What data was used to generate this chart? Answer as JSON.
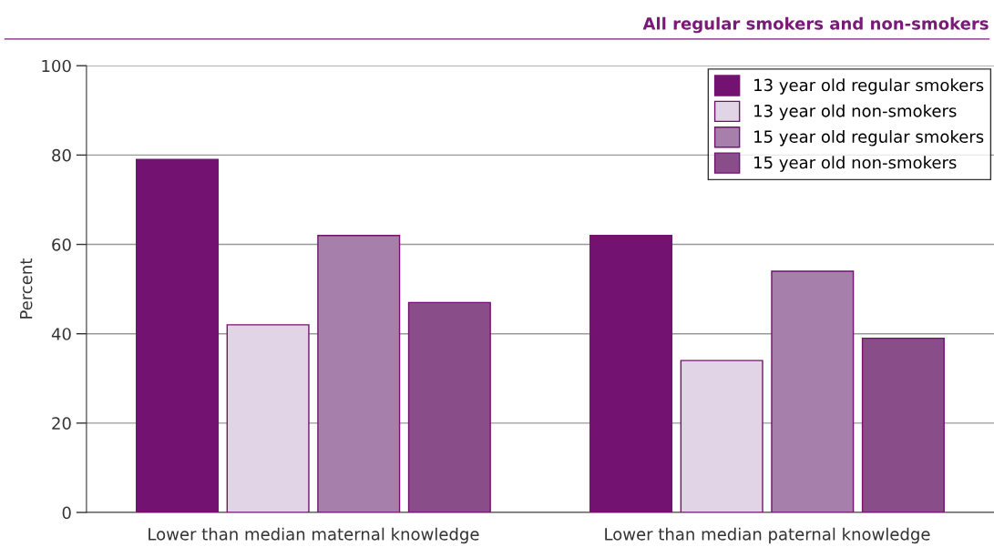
{
  "chart_data": {
    "type": "bar",
    "title": "All regular smokers and non-smokers",
    "ylabel": "Percent",
    "categories": [
      "Lower than median maternal knowledge",
      "Lower than median paternal knowledge"
    ],
    "series": [
      {
        "name": "13 year old regular smokers",
        "color": "#731270",
        "values": [
          79,
          62
        ]
      },
      {
        "name": "13 year old non-smokers",
        "color": "#e0d4e6",
        "values": [
          42,
          34
        ]
      },
      {
        "name": "15 year old regular smokers",
        "color": "#a67faa",
        "values": [
          62,
          54
        ]
      },
      {
        "name": "15 year old non-smokers",
        "color": "#894e8a",
        "values": [
          47,
          39
        ]
      }
    ],
    "ylim": [
      0,
      100
    ],
    "yticks": [
      0,
      20,
      40,
      60,
      80,
      100
    ],
    "grid": "y",
    "legend": "top right"
  }
}
